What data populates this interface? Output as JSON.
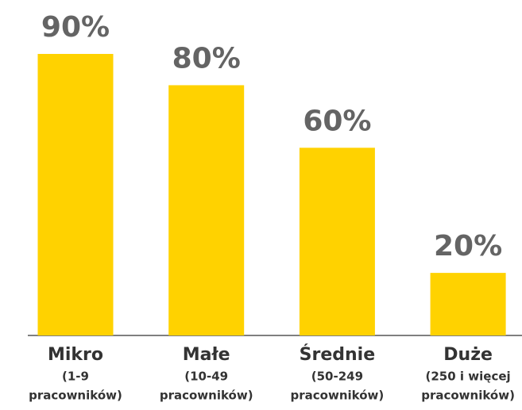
{
  "chart_data": {
    "type": "bar",
    "categories": [
      "Mikro",
      "Małe",
      "Średnie",
      "Duże"
    ],
    "category_details": [
      [
        "(1-9",
        "pracowników)"
      ],
      [
        "(10-49",
        "pracowników)"
      ],
      [
        "(50-249",
        "pracowników)"
      ],
      [
        "(250 i więcej",
        "pracowników)"
      ]
    ],
    "values": [
      90,
      80,
      60,
      20
    ],
    "value_labels": [
      "90%",
      "80%",
      "60%",
      "20%"
    ],
    "color": "#ffd200"
  }
}
